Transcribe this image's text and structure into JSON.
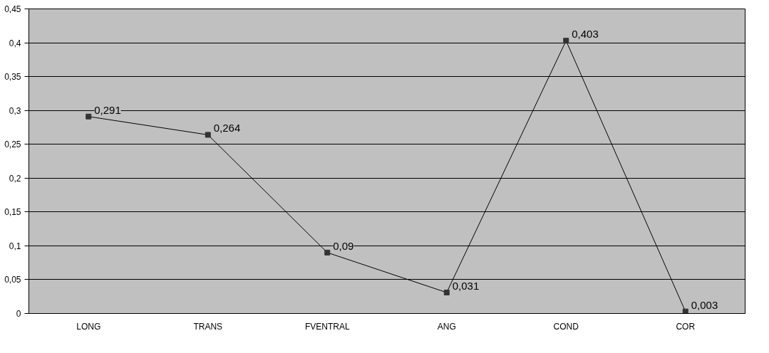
{
  "chart_data": {
    "type": "line",
    "categories": [
      "LONG",
      "TRANS",
      "FVENTRAL",
      "ANG",
      "COND",
      "COR"
    ],
    "series": [
      {
        "color": "#333333",
        "values": [
          0.291,
          0.264,
          0.09,
          0.031,
          0.403,
          0.003
        ],
        "value_labels": [
          "0,291",
          "0,264",
          "0,09",
          "0,031",
          "0,403",
          "0,003"
        ]
      }
    ],
    "ylim": [
      0,
      0.45
    ],
    "yticks": [
      0,
      {
        "value": 0.05,
        "label": "0,05"
      },
      {
        "value": 0.1,
        "label": "0,1"
      },
      {
        "value": 0.15,
        "label": "0,15"
      },
      {
        "value": 0.2,
        "label": "0,2"
      },
      {
        "value": 0.25,
        "label": "0,25"
      },
      {
        "value": 0.3,
        "label": "0,3"
      },
      {
        "value": 0.35,
        "label": "0,35"
      },
      {
        "value": 0.4,
        "label": "0,4"
      },
      {
        "value": 0.45,
        "label": "0,45"
      }
    ],
    "grid": "y",
    "marker": "square",
    "line_style": "solid"
  }
}
